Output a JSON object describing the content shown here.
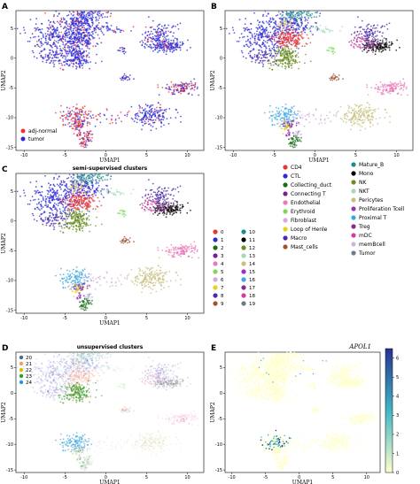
{
  "panels": {
    "A": {
      "letter": "A",
      "title": "",
      "legend": [
        {
          "label": "adj-normal",
          "color": "#e8333a"
        },
        {
          "label": "tumor",
          "color": "#2b2bd9"
        }
      ]
    },
    "B": {
      "letter": "B",
      "title": ""
    },
    "C": {
      "letter": "C",
      "title": "semi-supervised clusters"
    },
    "D": {
      "letter": "D",
      "title": "unsupervised clusters"
    },
    "E": {
      "letter": "E",
      "title": "",
      "gene": "APOL1"
    }
  },
  "axes": {
    "xlabel": "UMAP1",
    "ylabel": "UMAP2",
    "xticks": [
      -10,
      -5,
      0,
      5,
      10
    ],
    "yticks": [
      5,
      0,
      -5,
      -10,
      -15
    ]
  },
  "celltype_legend": {
    "left": [
      {
        "label": "CD4",
        "color": "#e8333a"
      },
      {
        "label": "CTL",
        "color": "#2b2bd9"
      },
      {
        "label": "Collecting_duct",
        "color": "#1a6b1a"
      },
      {
        "label": "Connecting T",
        "color": "#7a1f8c"
      },
      {
        "label": "Endothelial",
        "color": "#e87ab8"
      },
      {
        "label": "Erythroid",
        "color": "#7ed957"
      },
      {
        "label": "Fibroblast",
        "color": "#d6a8e0"
      },
      {
        "label": "Loop of Henle",
        "color": "#e6d21a"
      },
      {
        "label": "Macro",
        "color": "#4d2aa8"
      },
      {
        "label": "Mast_cells",
        "color": "#a0522d"
      }
    ],
    "right": [
      {
        "label": "Mature_B",
        "color": "#1a8a8a"
      },
      {
        "label": "Mono",
        "color": "#000000"
      },
      {
        "label": "NK",
        "color": "#6b8e23"
      },
      {
        "label": "NKT",
        "color": "#a6d9b3"
      },
      {
        "label": "Pericytes",
        "color": "#c8c080"
      },
      {
        "label": "Proliferation Tcell",
        "color": "#9b30c0"
      },
      {
        "label": "Proximal T",
        "color": "#3aa8e0"
      },
      {
        "label": "Treg",
        "color": "#8a2a8a"
      },
      {
        "label": "mDC",
        "color": "#d93a9b"
      },
      {
        "label": "memBcell",
        "color": "#c8b8e0"
      },
      {
        "label": "Tumor",
        "color": "#6b7b8c"
      }
    ]
  },
  "semi_legend": {
    "left": [
      {
        "label": "0",
        "color": "#e8333a"
      },
      {
        "label": "1",
        "color": "#2b2bd9"
      },
      {
        "label": "2",
        "color": "#1a6b1a"
      },
      {
        "label": "3",
        "color": "#7a1f8c"
      },
      {
        "label": "4",
        "color": "#e87ab8"
      },
      {
        "label": "5",
        "color": "#7ed957"
      },
      {
        "label": "6",
        "color": "#d6a8e0"
      },
      {
        "label": "7",
        "color": "#e6d21a"
      },
      {
        "label": "8",
        "color": "#4d2aa8"
      },
      {
        "label": "9",
        "color": "#a0522d"
      }
    ],
    "right": [
      {
        "label": "10",
        "color": "#1a8a8a"
      },
      {
        "label": "11",
        "color": "#000000"
      },
      {
        "label": "12",
        "color": "#6b8e23"
      },
      {
        "label": "13",
        "color": "#a6d9b3"
      },
      {
        "label": "14",
        "color": "#c8c080"
      },
      {
        "label": "15",
        "color": "#9b30c0"
      },
      {
        "label": "16",
        "color": "#3aa8e0"
      },
      {
        "label": "17",
        "color": "#8a2a8a"
      },
      {
        "label": "18",
        "color": "#d93a9b"
      },
      {
        "label": "19",
        "color": "#6b7b8c"
      }
    ]
  },
  "unsup_legend": [
    {
      "label": "20",
      "color": "#4d6a8c"
    },
    {
      "label": "21",
      "color": "#f0a060"
    },
    {
      "label": "22",
      "color": "#d9c000"
    },
    {
      "label": "23",
      "color": "#2ca02c"
    },
    {
      "label": "24",
      "color": "#1f9bd9"
    }
  ],
  "colorbar": {
    "ticks": [
      0,
      1,
      2,
      3,
      4,
      5,
      6
    ],
    "low": "#ffffcc",
    "mid": "#41b6c4",
    "high": "#253494"
  },
  "chart_data": [
    {
      "type": "scatter",
      "panel": "A",
      "title": "",
      "xlabel": "UMAP1",
      "ylabel": "UMAP2",
      "xlim": [
        -11,
        12
      ],
      "ylim": [
        -15.5,
        8
      ],
      "legend": "bottom-left",
      "series": [
        {
          "name": "adj-normal"
        },
        {
          "name": "tumor"
        }
      ]
    },
    {
      "type": "scatter",
      "panel": "B",
      "title": "",
      "xlabel": "UMAP1",
      "ylabel": "UMAP2",
      "xlim": [
        -11,
        12
      ],
      "ylim": [
        -15.5,
        8
      ],
      "legend": "below"
    },
    {
      "type": "scatter",
      "panel": "C",
      "title": "semi-supervised clusters",
      "xlabel": "UMAP1",
      "ylabel": "UMAP2",
      "xlim": [
        -11,
        12
      ],
      "ylim": [
        -15.5,
        8
      ],
      "legend": "right"
    },
    {
      "type": "scatter",
      "panel": "D",
      "title": "unsupervised clusters",
      "xlabel": "UMAP1",
      "ylabel": "UMAP2",
      "xlim": [
        -11,
        12
      ],
      "ylim": [
        -15.5,
        8
      ],
      "legend": "top-left"
    },
    {
      "type": "scatter",
      "panel": "E",
      "title": "",
      "xlabel": "UMAP1",
      "ylabel": "UMAP2",
      "xlim": [
        -11,
        12
      ],
      "ylim": [
        -15.5,
        8
      ],
      "color_scale": [
        0,
        6.5
      ]
    }
  ]
}
